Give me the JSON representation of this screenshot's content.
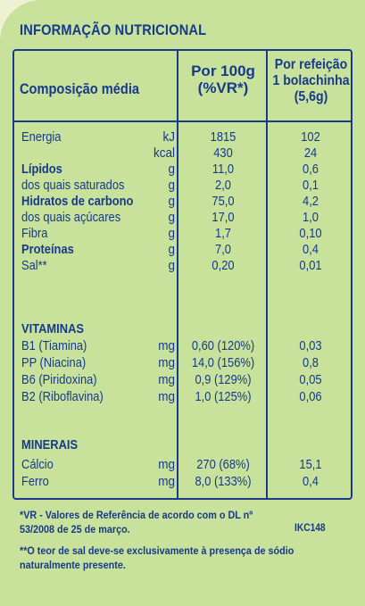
{
  "title": "INFORMAÇÃO NUTRICIONAL",
  "header": {
    "composition": "Composição média",
    "per100_l1": "Por 100g",
    "per100_l2": "(%VR*)",
    "ref_l1": "Por refeição",
    "ref_l2": "1 bolachinha",
    "ref_l3": "(5,6g)"
  },
  "nutrients": [
    {
      "label": "Energia",
      "unit": "kJ",
      "per100": "1815",
      "ref": "102",
      "bold": false
    },
    {
      "label": "",
      "unit": "kcal",
      "per100": "430",
      "ref": "24",
      "bold": false
    },
    {
      "label": "Lípidos",
      "unit": "g",
      "per100": "11,0",
      "ref": "0,6",
      "bold": true
    },
    {
      "label": "dos quais saturados",
      "unit": "g",
      "per100": "2,0",
      "ref": "0,1",
      "bold": false
    },
    {
      "label": "Hidratos de carbono",
      "unit": "g",
      "per100": "75,0",
      "ref": "4,2",
      "bold": true
    },
    {
      "label": "dos quais açúcares",
      "unit": "g",
      "per100": "17,0",
      "ref": "1,0",
      "bold": false
    },
    {
      "label": "Fibra",
      "unit": "g",
      "per100": "1,7",
      "ref": "0,10",
      "bold": false
    },
    {
      "label": "Proteínas",
      "unit": "g",
      "per100": "7,0",
      "ref": "0,4",
      "bold": true
    },
    {
      "label": "Sal**",
      "unit": "g",
      "per100": "0,20",
      "ref": "0,01",
      "bold": false
    }
  ],
  "vitamins_title": "VITAMINAS",
  "vitamins": [
    {
      "label": "B1 (Tiamina)",
      "unit": "mg",
      "per100": "0,60 (120%)",
      "ref": "0,03"
    },
    {
      "label": "PP (Niacina)",
      "unit": "mg",
      "per100": "14,0 (156%)",
      "ref": "0,8"
    },
    {
      "label": "B6 (Piridoxina)",
      "unit": "mg",
      "per100": "0,9 (129%)",
      "ref": "0,05"
    },
    {
      "label": "B2 (Riboflavina)",
      "unit": "mg",
      "per100": "1,0 (125%)",
      "ref": "0,06"
    }
  ],
  "minerals_title": "MINERAIS",
  "minerals": [
    {
      "label": "Cálcio",
      "unit": "mg",
      "per100": "270 (68%)",
      "ref": "15,1"
    },
    {
      "label": "Ferro",
      "unit": "mg",
      "per100": "8,0 (133%)",
      "ref": "0,4"
    }
  ],
  "footnote1_l1": "*VR - Valores de Referência de acordo com o DL nº",
  "footnote1_l2": "53/2008 de 25 de março.",
  "code": "IKC148",
  "footnote2_l1": "**O teor de sal deve-se exclusivamente à presença de sódio",
  "footnote2_l2": "naturalmente presente.",
  "colors": {
    "text": "#173a8a",
    "panel": "#c8e29c",
    "background": "#eef1d2"
  }
}
